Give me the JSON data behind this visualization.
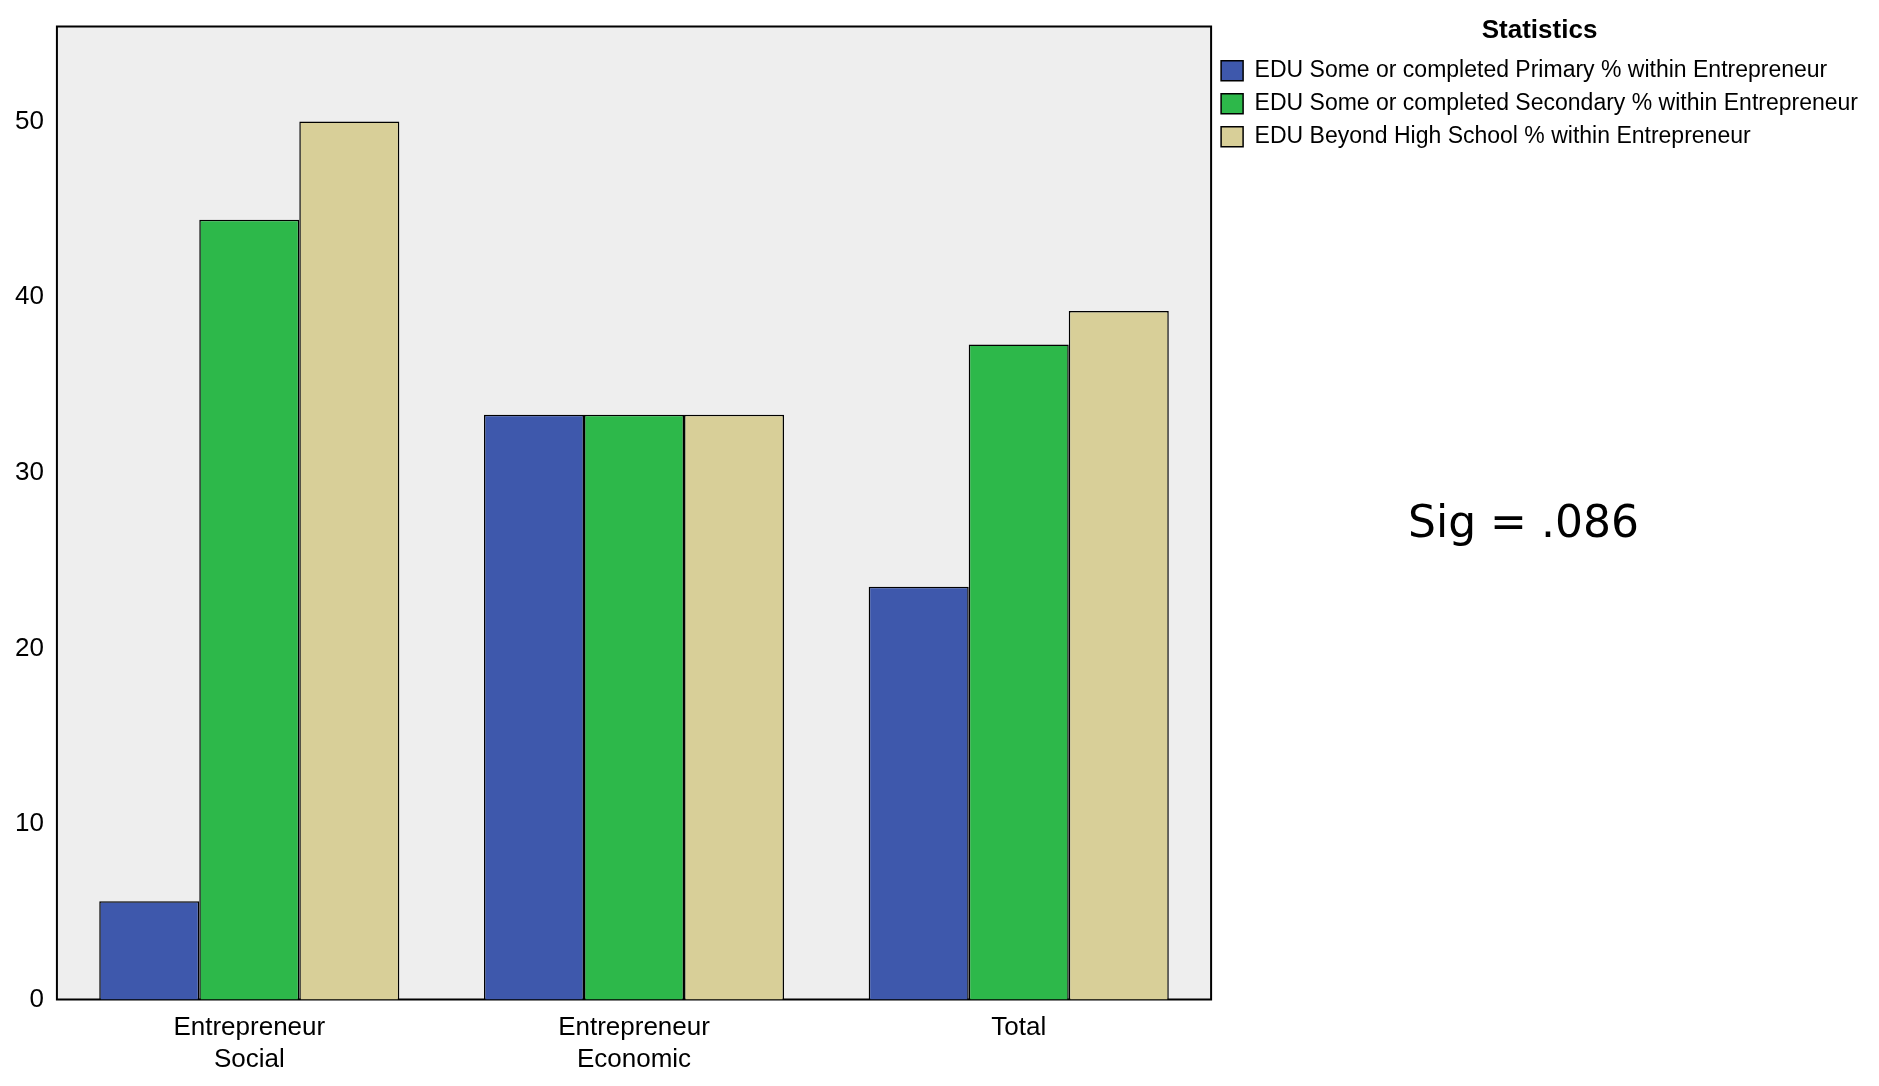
{
  "chart_data": {
    "type": "bar",
    "categories": [
      "Entrepreneur\nSocial",
      "Entrepreneur\nEconomic",
      "Total"
    ],
    "series": [
      {
        "name": "EDU Some or completed Primary % within Entrepreneur",
        "color": "#3e58ac",
        "values": [
          5.6,
          33.3,
          23.5
        ]
      },
      {
        "name": "EDU Some or completed Secondary % within Entrepreneur",
        "color": "#2db84a",
        "values": [
          44.4,
          33.3,
          37.3
        ]
      },
      {
        "name": "EDU Beyond High School % within Entrepreneur",
        "color": "#d8cf98",
        "values": [
          50.0,
          33.3,
          39.2
        ]
      }
    ],
    "ylim": [
      0,
      55.4
    ],
    "yticks": [
      0,
      10,
      20,
      30,
      40,
      50
    ],
    "grid": false,
    "legend": "top right",
    "legend_title": "Statistics",
    "annotations": [
      "Sig = .086"
    ]
  }
}
